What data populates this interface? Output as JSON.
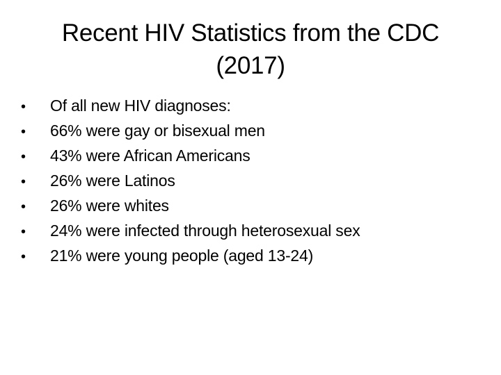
{
  "slide": {
    "title_line1": "Recent HIV Statistics from the CDC",
    "title_line2": "(2017)",
    "bullet_glyph": "•",
    "bullets": [
      "Of all new HIV diagnoses:",
      "66% were gay or bisexual men",
      "43% were African Americans",
      "26% were Latinos",
      "26% were whites",
      "24% were infected through heterosexual sex",
      "21% were young people (aged 13-24)"
    ]
  }
}
